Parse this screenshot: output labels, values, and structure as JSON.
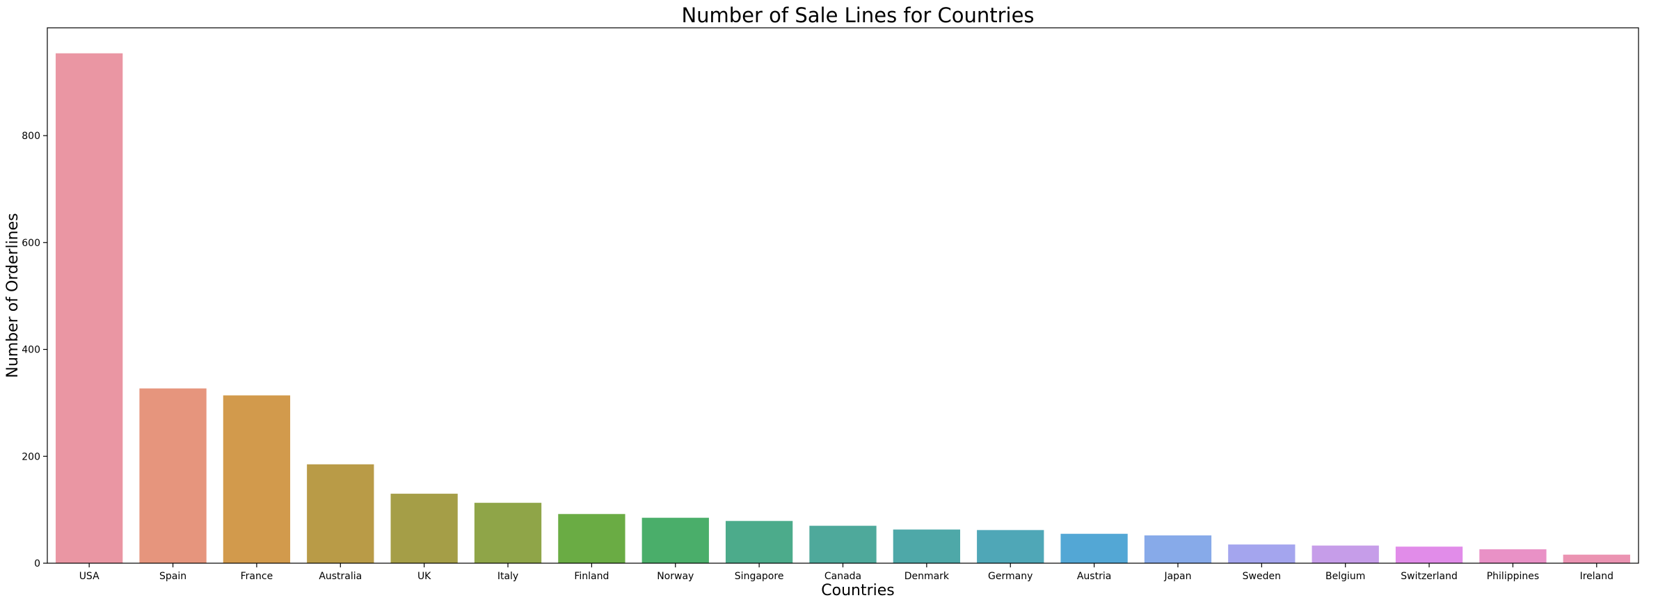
{
  "chart_data": {
    "type": "bar",
    "title": "Number of Sale Lines for Countries",
    "xlabel": "Countries",
    "ylabel": "Number of Orderlines",
    "categories": [
      "USA",
      "Spain",
      "France",
      "Australia",
      "UK",
      "Italy",
      "Finland",
      "Norway",
      "Singapore",
      "Canada",
      "Denmark",
      "Germany",
      "Austria",
      "Japan",
      "Sweden",
      "Belgium",
      "Switzerland",
      "Philippines",
      "Ireland"
    ],
    "values": [
      954,
      327,
      314,
      185,
      130,
      113,
      92,
      85,
      79,
      70,
      63,
      62,
      55,
      52,
      35,
      33,
      31,
      26,
      16
    ],
    "colors": [
      "#ea96a3",
      "#e6957d",
      "#d29a4c",
      "#b99b47",
      "#a59e47",
      "#8fa548",
      "#6aac44",
      "#4aae6a",
      "#4cab8b",
      "#4ea99b",
      "#4ea8a8",
      "#4fa7b7",
      "#53a7d5",
      "#87aae9",
      "#a4a5ee",
      "#c69de9",
      "#e18ce9",
      "#e991c6",
      "#eb93b2"
    ],
    "yticks": [
      0,
      200,
      400,
      600,
      800
    ],
    "ylim": [
      0,
      1001.7
    ],
    "grid": false,
    "legend": "none"
  }
}
